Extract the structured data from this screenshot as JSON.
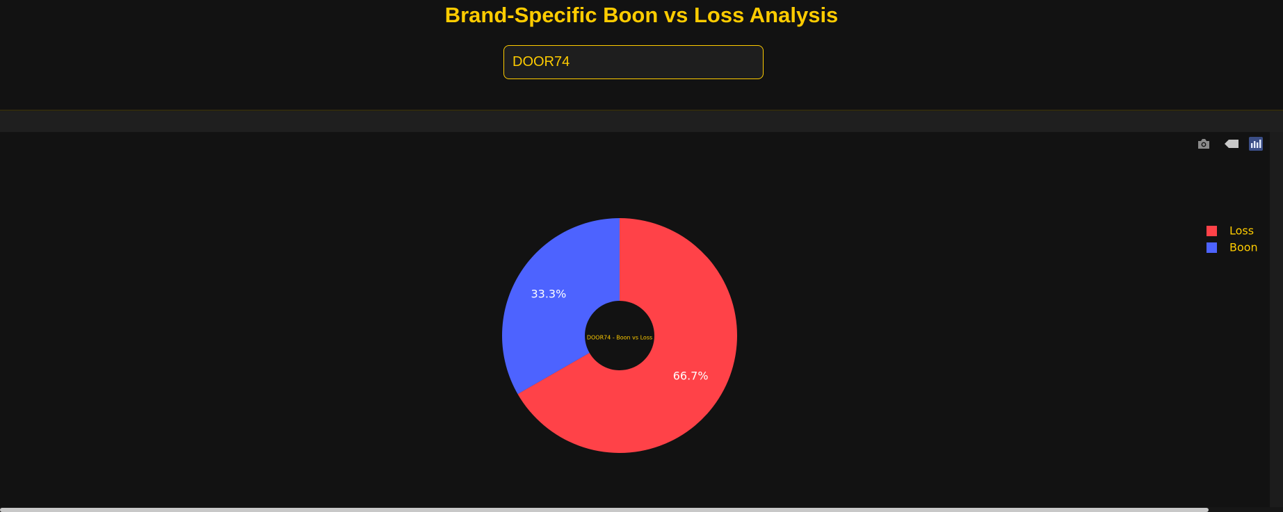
{
  "header": {
    "title": "Brand-Specific Boon vs Loss Analysis",
    "brand_input_value": "DOOR74"
  },
  "modebar": {
    "icons": [
      "camera-icon",
      "tag-icon",
      "bar-chart-icon"
    ]
  },
  "colors": {
    "accent": "#ffcc00",
    "loss": "#ff4248",
    "boon": "#4d63ff",
    "background": "#121212"
  },
  "chart_data": {
    "type": "pie",
    "hole": true,
    "center_label": "DOOR74 - Boon vs Loss",
    "labels": [
      "Loss",
      "Boon"
    ],
    "values": [
      66.7,
      33.3
    ],
    "text_labels": [
      "66.7%",
      "33.3%"
    ],
    "colors": [
      "#ff4248",
      "#4d63ff"
    ],
    "legend": {
      "placement": "top-right",
      "entries": [
        "Loss",
        "Boon"
      ]
    }
  }
}
